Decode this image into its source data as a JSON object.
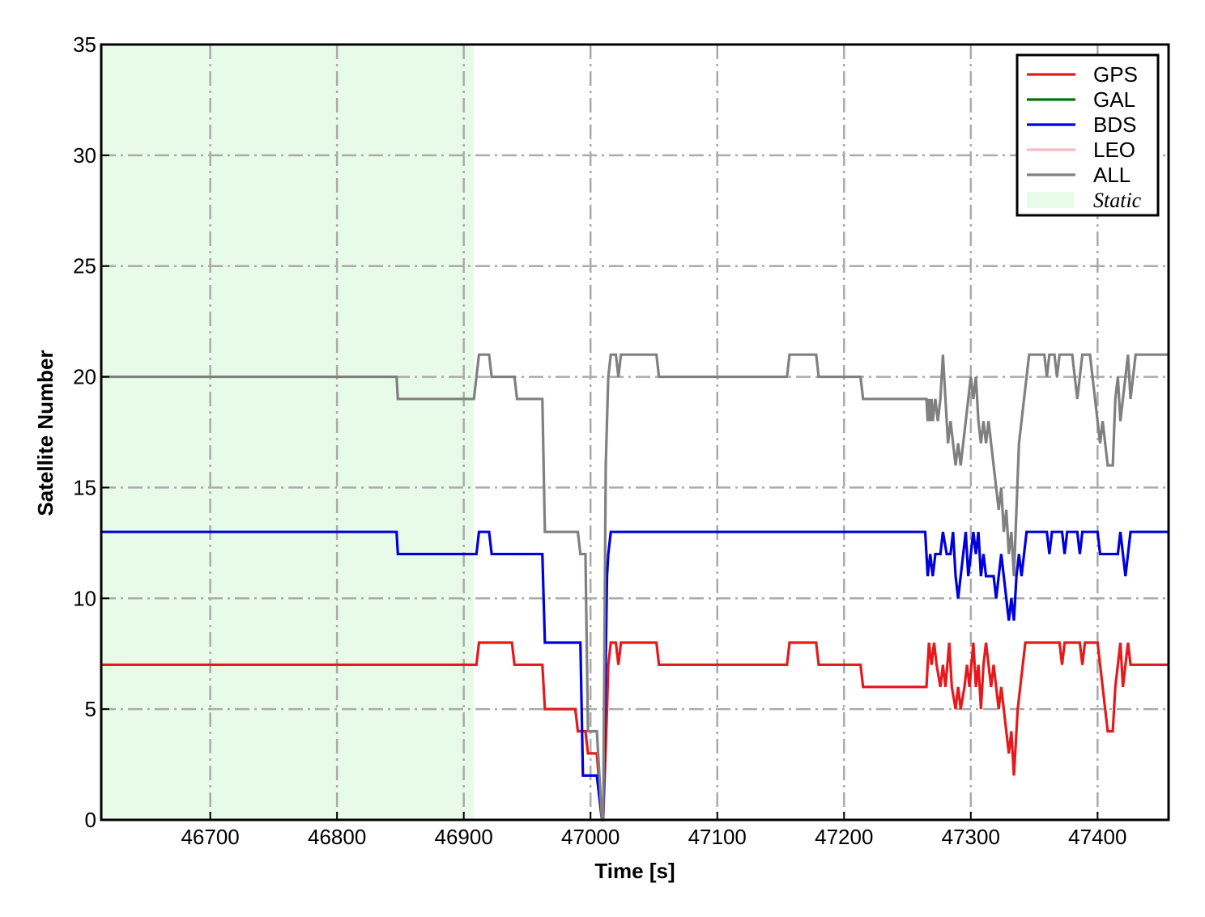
{
  "chart_data": {
    "type": "line",
    "title": "",
    "xlabel": "Time [s]",
    "ylabel": "Satellite Number",
    "xlim": [
      46614,
      47456
    ],
    "ylim": [
      0,
      35
    ],
    "xticks": [
      46700,
      46800,
      46900,
      47000,
      47100,
      47200,
      47300,
      47400
    ],
    "yticks": [
      0,
      5,
      10,
      15,
      20,
      25,
      30,
      35
    ],
    "grid": true,
    "grid_style": "dash-dot",
    "grid_color": "#aaaaaa",
    "legend_position": "top-right",
    "shaded_region": {
      "label": "Static",
      "x_start": 46614,
      "x_end": 46908,
      "color": "#e8fbe8"
    },
    "series": [
      {
        "name": "GPS",
        "color": "#e41a1c",
        "points": [
          [
            46614,
            7
          ],
          [
            46910,
            7
          ],
          [
            46912,
            8
          ],
          [
            46938,
            8
          ],
          [
            46940,
            7
          ],
          [
            46962,
            7
          ],
          [
            46964,
            5
          ],
          [
            46988,
            5
          ],
          [
            46990,
            4
          ],
          [
            46996,
            4
          ],
          [
            46998,
            3
          ],
          [
            47005,
            3
          ],
          [
            47009,
            0
          ],
          [
            47010,
            0
          ],
          [
            47013,
            5
          ],
          [
            47014,
            7
          ],
          [
            47016,
            8
          ],
          [
            47020,
            8
          ],
          [
            47022,
            7
          ],
          [
            47024,
            8
          ],
          [
            47052,
            8
          ],
          [
            47054,
            7
          ],
          [
            47155,
            7
          ],
          [
            47157,
            8
          ],
          [
            47178,
            8
          ],
          [
            47180,
            7
          ],
          [
            47213,
            7
          ],
          [
            47215,
            6
          ],
          [
            47265,
            6
          ],
          [
            47267,
            8
          ],
          [
            47269,
            7
          ],
          [
            47271,
            8
          ],
          [
            47273,
            7
          ],
          [
            47276,
            6
          ],
          [
            47278,
            7
          ],
          [
            47280,
            6
          ],
          [
            47283,
            8
          ],
          [
            47285,
            6
          ],
          [
            47288,
            5
          ],
          [
            47290,
            6
          ],
          [
            47292,
            5
          ],
          [
            47295,
            6
          ],
          [
            47297,
            7
          ],
          [
            47299,
            6
          ],
          [
            47302,
            8
          ],
          [
            47304,
            6
          ],
          [
            47306,
            7
          ],
          [
            47308,
            5
          ],
          [
            47310,
            7
          ],
          [
            47312,
            8
          ],
          [
            47314,
            7
          ],
          [
            47316,
            6
          ],
          [
            47318,
            7
          ],
          [
            47320,
            6
          ],
          [
            47322,
            5
          ],
          [
            47324,
            6
          ],
          [
            47326,
            5
          ],
          [
            47328,
            4
          ],
          [
            47330,
            3
          ],
          [
            47332,
            4
          ],
          [
            47334,
            2
          ],
          [
            47335,
            3
          ],
          [
            47337,
            5
          ],
          [
            47339,
            6
          ],
          [
            47341,
            7
          ],
          [
            47343,
            8
          ],
          [
            47370,
            8
          ],
          [
            47372,
            7
          ],
          [
            47374,
            8
          ],
          [
            47386,
            8
          ],
          [
            47388,
            7
          ],
          [
            47390,
            8
          ],
          [
            47400,
            8
          ],
          [
            47402,
            7
          ],
          [
            47404,
            6
          ],
          [
            47406,
            5
          ],
          [
            47408,
            4
          ],
          [
            47412,
            4
          ],
          [
            47414,
            6
          ],
          [
            47416,
            7
          ],
          [
            47418,
            8
          ],
          [
            47420,
            6
          ],
          [
            47422,
            7
          ],
          [
            47424,
            8
          ],
          [
            47426,
            7
          ],
          [
            47456,
            7
          ]
        ]
      },
      {
        "name": "GAL",
        "color": "#007000",
        "points": []
      },
      {
        "name": "BDS",
        "color": "#0000dd",
        "points": [
          [
            46614,
            13
          ],
          [
            46847,
            13
          ],
          [
            46848,
            12
          ],
          [
            46910,
            12
          ],
          [
            46912,
            13
          ],
          [
            46920,
            13
          ],
          [
            46922,
            12
          ],
          [
            46962,
            12
          ],
          [
            46964,
            8
          ],
          [
            46992,
            8
          ],
          [
            46994,
            2
          ],
          [
            47005,
            2
          ],
          [
            47009,
            0
          ],
          [
            47010,
            0
          ],
          [
            47013,
            11
          ],
          [
            47014,
            12
          ],
          [
            47016,
            13
          ],
          [
            47264,
            13
          ],
          [
            47266,
            11
          ],
          [
            47268,
            12
          ],
          [
            47270,
            11
          ],
          [
            47272,
            12
          ],
          [
            47276,
            12
          ],
          [
            47278,
            13
          ],
          [
            47281,
            12
          ],
          [
            47284,
            12
          ],
          [
            47286,
            13
          ],
          [
            47288,
            11
          ],
          [
            47290,
            10
          ],
          [
            47292,
            11
          ],
          [
            47294,
            12
          ],
          [
            47296,
            13
          ],
          [
            47298,
            11
          ],
          [
            47300,
            12
          ],
          [
            47302,
            13
          ],
          [
            47304,
            12
          ],
          [
            47306,
            13
          ],
          [
            47308,
            11
          ],
          [
            47310,
            12
          ],
          [
            47312,
            11
          ],
          [
            47318,
            11
          ],
          [
            47320,
            10
          ],
          [
            47322,
            11
          ],
          [
            47324,
            12
          ],
          [
            47326,
            11
          ],
          [
            47328,
            10
          ],
          [
            47330,
            9
          ],
          [
            47332,
            10
          ],
          [
            47334,
            9
          ],
          [
            47336,
            11
          ],
          [
            47338,
            12
          ],
          [
            47340,
            11
          ],
          [
            47342,
            12
          ],
          [
            47344,
            13
          ],
          [
            47360,
            13
          ],
          [
            47362,
            12
          ],
          [
            47364,
            13
          ],
          [
            47372,
            13
          ],
          [
            47374,
            12
          ],
          [
            47376,
            13
          ],
          [
            47384,
            13
          ],
          [
            47386,
            12
          ],
          [
            47388,
            13
          ],
          [
            47400,
            13
          ],
          [
            47402,
            12
          ],
          [
            47416,
            12
          ],
          [
            47418,
            13
          ],
          [
            47420,
            12
          ],
          [
            47422,
            11
          ],
          [
            47424,
            12
          ],
          [
            47426,
            13
          ],
          [
            47456,
            13
          ]
        ]
      },
      {
        "name": "LEO",
        "color": "#ffb6c8",
        "points": []
      },
      {
        "name": "ALL",
        "color": "#808080",
        "points": [
          [
            46614,
            20
          ],
          [
            46847,
            20
          ],
          [
            46848,
            19
          ],
          [
            46908,
            19
          ],
          [
            46910,
            20
          ],
          [
            46912,
            21
          ],
          [
            46920,
            21
          ],
          [
            46922,
            20
          ],
          [
            46940,
            20
          ],
          [
            46942,
            19
          ],
          [
            46962,
            19
          ],
          [
            46964,
            13
          ],
          [
            46990,
            13
          ],
          [
            46992,
            12
          ],
          [
            46996,
            12
          ],
          [
            46998,
            4
          ],
          [
            47005,
            4
          ],
          [
            47009,
            0
          ],
          [
            47010,
            0
          ],
          [
            47012,
            16
          ],
          [
            47014,
            20
          ],
          [
            47016,
            21
          ],
          [
            47020,
            21
          ],
          [
            47022,
            20
          ],
          [
            47024,
            21
          ],
          [
            47052,
            21
          ],
          [
            47054,
            20
          ],
          [
            47155,
            20
          ],
          [
            47157,
            21
          ],
          [
            47178,
            21
          ],
          [
            47180,
            20
          ],
          [
            47213,
            20
          ],
          [
            47215,
            19
          ],
          [
            47265,
            19
          ],
          [
            47266,
            18
          ],
          [
            47267,
            19
          ],
          [
            47268,
            18
          ],
          [
            47269,
            19
          ],
          [
            47270,
            18
          ],
          [
            47272,
            19
          ],
          [
            47274,
            18
          ],
          [
            47276,
            19
          ],
          [
            47278,
            21
          ],
          [
            47279,
            20
          ],
          [
            47280,
            19
          ],
          [
            47282,
            17
          ],
          [
            47284,
            18
          ],
          [
            47286,
            17
          ],
          [
            47288,
            16
          ],
          [
            47290,
            17
          ],
          [
            47292,
            16
          ],
          [
            47294,
            17
          ],
          [
            47296,
            18
          ],
          [
            47298,
            19
          ],
          [
            47300,
            20
          ],
          [
            47302,
            19
          ],
          [
            47304,
            20
          ],
          [
            47306,
            18
          ],
          [
            47308,
            17
          ],
          [
            47310,
            18
          ],
          [
            47312,
            17
          ],
          [
            47314,
            18
          ],
          [
            47316,
            17
          ],
          [
            47318,
            16
          ],
          [
            47320,
            15
          ],
          [
            47322,
            14
          ],
          [
            47324,
            15
          ],
          [
            47326,
            13
          ],
          [
            47328,
            14
          ],
          [
            47330,
            12
          ],
          [
            47332,
            13
          ],
          [
            47334,
            11
          ],
          [
            47336,
            14
          ],
          [
            47338,
            17
          ],
          [
            47340,
            18
          ],
          [
            47342,
            19
          ],
          [
            47344,
            20
          ],
          [
            47346,
            21
          ],
          [
            47358,
            21
          ],
          [
            47360,
            20
          ],
          [
            47362,
            21
          ],
          [
            47366,
            21
          ],
          [
            47368,
            20
          ],
          [
            47370,
            21
          ],
          [
            47380,
            21
          ],
          [
            47382,
            20
          ],
          [
            47384,
            19
          ],
          [
            47386,
            20
          ],
          [
            47388,
            21
          ],
          [
            47394,
            21
          ],
          [
            47396,
            20
          ],
          [
            47398,
            19
          ],
          [
            47400,
            18
          ],
          [
            47402,
            17
          ],
          [
            47404,
            18
          ],
          [
            47406,
            17
          ],
          [
            47408,
            16
          ],
          [
            47412,
            16
          ],
          [
            47414,
            19
          ],
          [
            47416,
            20
          ],
          [
            47418,
            18
          ],
          [
            47420,
            19
          ],
          [
            47422,
            20
          ],
          [
            47424,
            21
          ],
          [
            47426,
            19
          ],
          [
            47428,
            20
          ],
          [
            47430,
            21
          ],
          [
            47456,
            21
          ]
        ]
      }
    ]
  },
  "legend": {
    "items": [
      {
        "label": "GPS",
        "color": "#e41a1c",
        "kind": "line"
      },
      {
        "label": "GAL",
        "color": "#007000",
        "kind": "line"
      },
      {
        "label": "BDS",
        "color": "#0000dd",
        "kind": "line"
      },
      {
        "label": "LEO",
        "color": "#ffb6c8",
        "kind": "line"
      },
      {
        "label": "ALL",
        "color": "#808080",
        "kind": "line"
      },
      {
        "label": "Static",
        "color": "#e8fbe8",
        "kind": "patch"
      }
    ]
  }
}
